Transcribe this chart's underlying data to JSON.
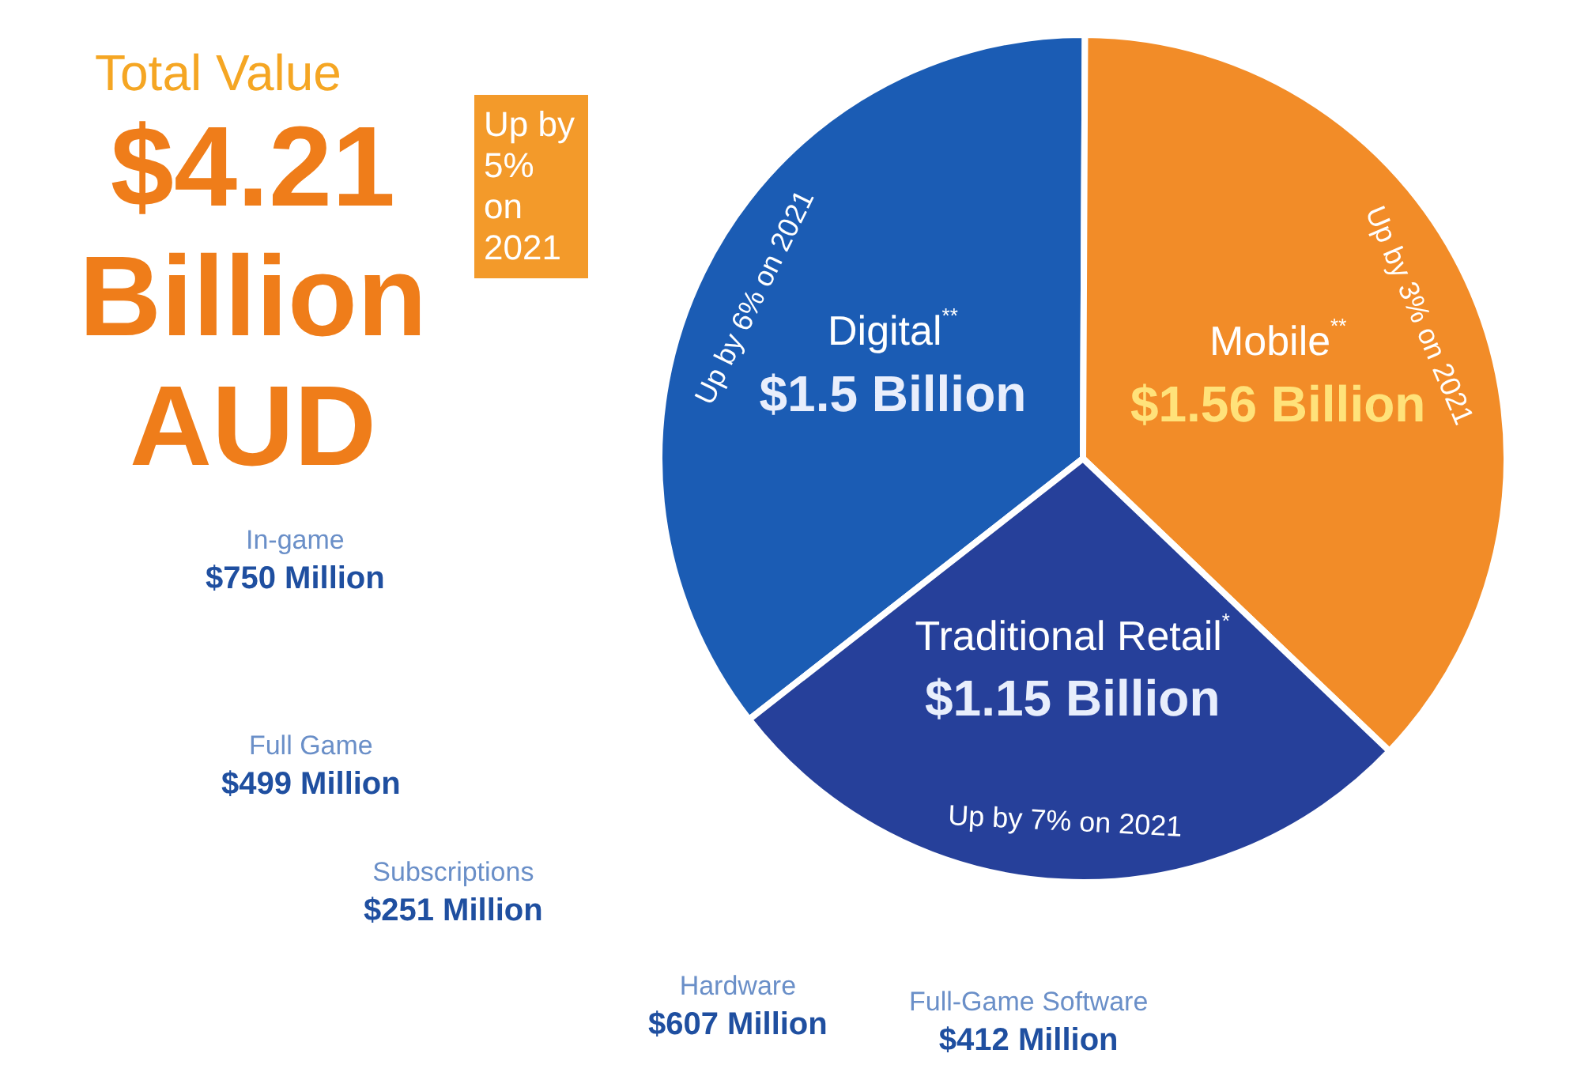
{
  "chart_data": {
    "type": "pie",
    "title": "Total Value",
    "subtitle": "$4.21 Billion AUD",
    "categories": [
      "Digital$^{**}$",
      "Mobile$^{**}$",
      "Traditional Retail$^{*}$"
    ],
    "values": [
      1.5,
      1.56,
      1.15
    ],
    "colors": [
      "#1b5cb4",
      "#f28c28",
      "#26409a"
    ],
    "value_labels": [
      "$1.5 Billion",
      "$1.56 Billion",
      "$1.15 Billion"
    ],
    "annotations": [
      "Up by 5% on 2021",
      "Up by 6% on 2021",
      "Up by 3% on 2021",
      "Up by 7% on 2021",
      "In-game\n$750 Million",
      "Full Game\n$499 Million",
      "Subscriptions\n$251 Million",
      "Hardware\n$607 Million",
      "Full-Game Software\n$412 Million"
    ]
  }
}
